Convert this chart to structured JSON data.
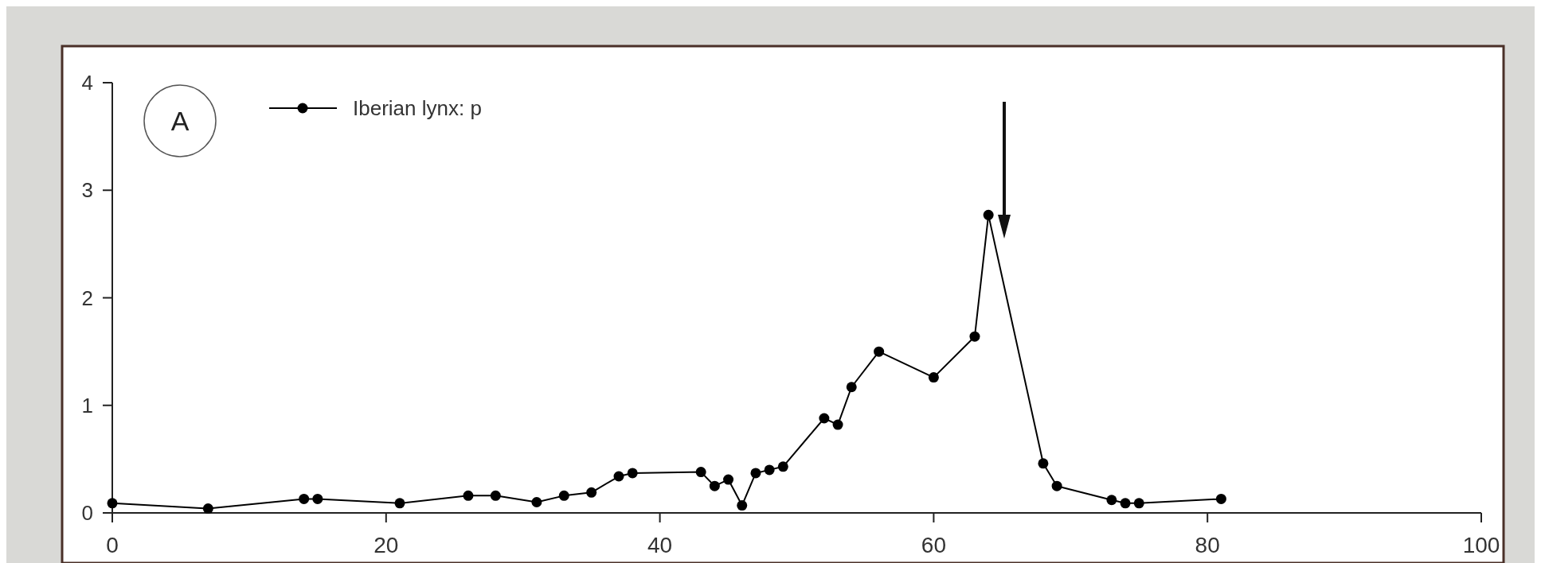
{
  "chart_data": {
    "type": "line",
    "annotations": [
      "A"
    ],
    "x": [
      0,
      7,
      14,
      15,
      21,
      26,
      28,
      31,
      33,
      35,
      37,
      38,
      43,
      44,
      45,
      46,
      47,
      48,
      49,
      52,
      53,
      54,
      56,
      60,
      63,
      64,
      68,
      69,
      73,
      74,
      75,
      81
    ],
    "series": [
      {
        "name": "Iberian lynx: p",
        "color": "#000000",
        "values": [
          0.09,
          0.04,
          0.13,
          0.13,
          0.09,
          0.16,
          0.16,
          0.1,
          0.16,
          0.19,
          0.34,
          0.37,
          0.38,
          0.25,
          0.31,
          0.07,
          0.37,
          0.4,
          0.43,
          0.88,
          0.82,
          1.17,
          1.5,
          1.26,
          1.64,
          2.77,
          0.46,
          0.25,
          0.12,
          0.09,
          0.09,
          0.13
        ]
      }
    ],
    "xlim": [
      0,
      100
    ],
    "xticks": [
      0,
      20,
      40,
      60,
      80,
      100
    ],
    "ylim": [
      0,
      4
    ],
    "yticks": [
      0,
      1,
      2,
      3,
      4
    ],
    "legend": "top left",
    "marker": "circle",
    "line_style": "solid"
  }
}
